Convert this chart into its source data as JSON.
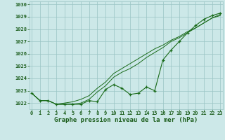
{
  "title": "Graphe pression niveau de la mer (hPa)",
  "x_values": [
    0,
    1,
    2,
    3,
    4,
    5,
    6,
    7,
    8,
    9,
    10,
    11,
    12,
    13,
    14,
    15,
    16,
    17,
    18,
    19,
    20,
    21,
    22,
    23
  ],
  "series_main": [
    1022.8,
    1022.2,
    1022.2,
    1021.9,
    1021.9,
    1021.9,
    1021.9,
    1022.2,
    1022.1,
    1023.1,
    1023.5,
    1023.2,
    1022.7,
    1022.8,
    1023.3,
    1023.0,
    1025.5,
    1026.3,
    1027.0,
    1027.7,
    1028.3,
    1028.8,
    1029.1,
    1029.3
  ],
  "series2": [
    1022.8,
    1022.2,
    1022.2,
    1021.9,
    1021.9,
    1021.9,
    1022.0,
    1022.3,
    1022.9,
    1023.4,
    1024.1,
    1024.5,
    1024.8,
    1025.2,
    1025.7,
    1026.1,
    1026.5,
    1027.0,
    1027.3,
    1027.7,
    1028.1,
    1028.5,
    1028.9,
    1029.2
  ],
  "series3": [
    1022.8,
    1022.2,
    1022.2,
    1021.9,
    1022.0,
    1022.1,
    1022.3,
    1022.6,
    1023.2,
    1023.7,
    1024.4,
    1024.8,
    1025.2,
    1025.6,
    1026.0,
    1026.4,
    1026.7,
    1027.1,
    1027.4,
    1027.8,
    1028.1,
    1028.5,
    1028.9,
    1029.1
  ],
  "ylim": [
    1021.5,
    1030.25
  ],
  "yticks": [
    1022,
    1023,
    1024,
    1025,
    1026,
    1027,
    1028,
    1029,
    1030
  ],
  "line_color": "#1a6b1a",
  "bg_color": "#cce8e8",
  "grid_color": "#99c4c4",
  "label_color": "#1a5c1a",
  "title_color": "#1a5c1a",
  "title_fontsize": 6.5,
  "tick_fontsize": 5.0
}
